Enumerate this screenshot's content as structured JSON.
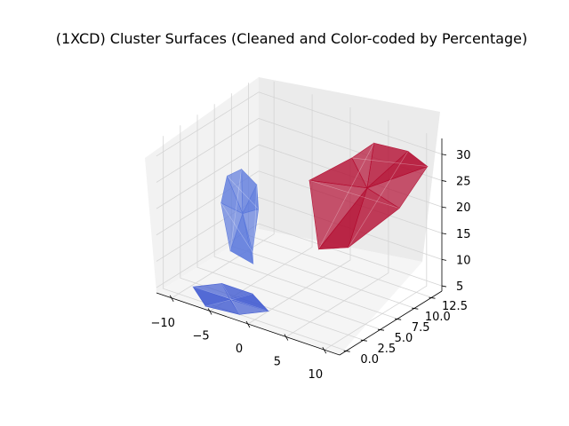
{
  "chart_data": {
    "type": "3d-surface",
    "title": "(1XCD) Cluster Surfaces (Cleaned and Color-coded by Percentage)",
    "xlabel": "",
    "ylabel": "",
    "zlabel": "",
    "xlim": [
      -12,
      12
    ],
    "ylim": [
      -1,
      14
    ],
    "zlim": [
      4,
      33
    ],
    "x_ticks": [
      "−10",
      "−5",
      "0",
      "5",
      "10"
    ],
    "y_ticks": [
      "0.0",
      "2.5",
      "5.0",
      "7.5",
      "10.0",
      "12.5"
    ],
    "z_ticks": [
      "5",
      "10",
      "15",
      "20",
      "25",
      "30"
    ],
    "grid": true,
    "series": [
      {
        "color": "#b2092e",
        "surface_points": [
          [
            2,
            12,
            26
          ],
          [
            4,
            13,
            29
          ],
          [
            8,
            13.5,
            29
          ],
          [
            11,
            13,
            28
          ],
          [
            10,
            10,
            22
          ],
          [
            6,
            7,
            15
          ],
          [
            3,
            6,
            14
          ],
          [
            0,
            8,
            24
          ]
        ]
      },
      {
        "color": "#5a78dc",
        "surface_points": [
          [
            -9,
            6,
            22
          ],
          [
            -8,
            7,
            23
          ],
          [
            -6,
            7,
            21
          ],
          [
            -4,
            5,
            19
          ],
          [
            -3,
            3,
            13
          ],
          [
            -2,
            2,
            12
          ],
          [
            -5,
            2,
            13
          ],
          [
            -8,
            4,
            19
          ]
        ]
      },
      {
        "color": "#3c57d0",
        "surface_points": [
          [
            -9,
            1,
            5
          ],
          [
            -7,
            3,
            5
          ],
          [
            -3,
            3,
            5
          ],
          [
            0,
            2,
            4
          ],
          [
            -2,
            0,
            4
          ],
          [
            -6,
            -0.5,
            4
          ]
        ]
      }
    ]
  }
}
